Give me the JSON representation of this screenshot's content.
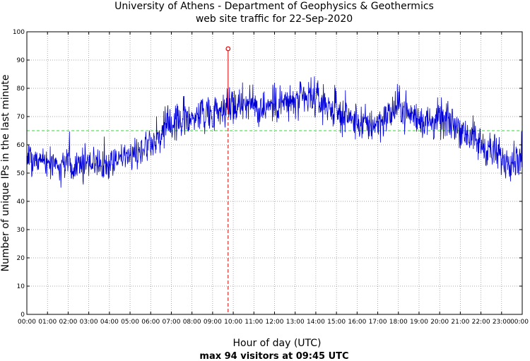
{
  "chart_data": {
    "type": "line",
    "title": "University of Athens - Department of Geophysics & Geothermics",
    "subtitle": "web site traffic for 22-Sep-2020",
    "xlabel": "Hour of day (UTC)",
    "ylabel": "Number of unique IPs in the last minute",
    "footer": "max 94 visitors at 09:45 UTC",
    "xlim": [
      0,
      24
    ],
    "ylim": [
      0,
      100
    ],
    "y_ticks": [
      0,
      10,
      20,
      30,
      40,
      50,
      60,
      70,
      80,
      90,
      100
    ],
    "x_ticks": [
      "00:00",
      "01:00",
      "02:00",
      "03:00",
      "04:00",
      "05:00",
      "06:00",
      "07:00",
      "08:00",
      "09:00",
      "10:00",
      "11:00",
      "12:00",
      "13:00",
      "14:00",
      "15:00",
      "16:00",
      "17:00",
      "18:00",
      "19:00",
      "20:00",
      "21:00",
      "22:00",
      "23:00",
      "00:00"
    ],
    "grid": true,
    "series": [
      {
        "color": "#0000d6",
        "x": [
          0,
          0.5,
          1,
          1.5,
          2,
          2.5,
          3,
          3.5,
          4,
          4.5,
          5,
          5.5,
          6,
          6.5,
          7,
          7.5,
          8,
          8.5,
          9,
          9.5,
          10,
          10.5,
          11,
          11.5,
          12,
          12.5,
          13,
          13.5,
          14,
          14.5,
          15,
          15.5,
          16,
          16.5,
          17,
          17.5,
          18,
          18.5,
          19,
          19.5,
          20,
          20.5,
          21,
          21.5,
          22,
          22.5,
          23,
          23.5,
          24
        ],
        "y": [
          55,
          54,
          54,
          53,
          53,
          54,
          54,
          53,
          54,
          55,
          56,
          58,
          61,
          64,
          67,
          69,
          70,
          71,
          72,
          73,
          74,
          75,
          74,
          73,
          74,
          75,
          75,
          76,
          76,
          74,
          72,
          70,
          68,
          67,
          68,
          70,
          74,
          71,
          69,
          68,
          69,
          68,
          66,
          63,
          60,
          58,
          55,
          55,
          56
        ]
      }
    ],
    "reference_line": {
      "y": 65,
      "color": "#33d933"
    },
    "max_marker": {
      "x": 9.75,
      "y": 94,
      "color": "#e60000"
    }
  }
}
